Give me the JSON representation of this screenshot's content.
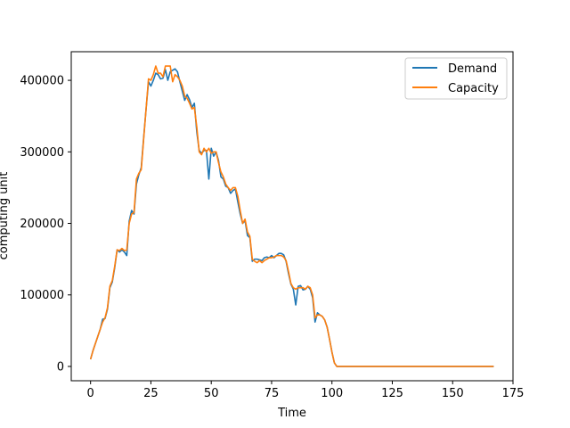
{
  "chart_data": {
    "type": "line",
    "title": "",
    "xlabel": "Time",
    "ylabel": "computing unit",
    "xlim": [
      -8,
      175
    ],
    "ylim": [
      -20000,
      440000
    ],
    "xticks": [
      0,
      25,
      50,
      75,
      100,
      125,
      150,
      175
    ],
    "xtick_labels": [
      "0",
      "25",
      "50",
      "75",
      "100",
      "125",
      "150",
      "175"
    ],
    "yticks": [
      0,
      100000,
      200000,
      300000,
      400000
    ],
    "ytick_labels": [
      "0",
      "100000",
      "200000",
      "300000",
      "400000"
    ],
    "grid": false,
    "legend_position": "top-right",
    "series": [
      {
        "name": "Demand",
        "color": "#1f77b4",
        "x": [
          0,
          1,
          2,
          3,
          4,
          5,
          6,
          7,
          8,
          9,
          10,
          11,
          12,
          13,
          14,
          15,
          16,
          17,
          18,
          19,
          20,
          21,
          22,
          23,
          24,
          25,
          26,
          27,
          28,
          29,
          30,
          31,
          32,
          33,
          34,
          35,
          36,
          37,
          38,
          39,
          40,
          41,
          42,
          43,
          44,
          45,
          46,
          47,
          48,
          49,
          50,
          51,
          52,
          53,
          54,
          55,
          56,
          57,
          58,
          59,
          60,
          61,
          62,
          63,
          64,
          65,
          66,
          67,
          68,
          69,
          70,
          71,
          72,
          73,
          74,
          75,
          76,
          77,
          78,
          79,
          80,
          81,
          82,
          83,
          84,
          85,
          86,
          87,
          88,
          89,
          90,
          91,
          92,
          93,
          94,
          95,
          96,
          97,
          98,
          99,
          100,
          101,
          102,
          103,
          104,
          105,
          106,
          107,
          108,
          110,
          120,
          130,
          140,
          150,
          160,
          167
        ],
        "y": [
          10000,
          22000,
          32000,
          42000,
          52000,
          66000,
          67000,
          80000,
          110000,
          118000,
          138000,
          163000,
          160000,
          163000,
          160000,
          155000,
          203000,
          218000,
          213000,
          255000,
          268000,
          278000,
          320000,
          360000,
          398000,
          392000,
          400000,
          410000,
          408000,
          402000,
          403000,
          415000,
          400000,
          412000,
          414000,
          416000,
          412000,
          398000,
          385000,
          372000,
          380000,
          373000,
          362000,
          368000,
          328000,
          302000,
          298000,
          302000,
          302000,
          262000,
          305000,
          294000,
          300000,
          288000,
          265000,
          262000,
          252000,
          250000,
          242000,
          246000,
          248000,
          230000,
          213000,
          200000,
          204000,
          183000,
          180000,
          147000,
          150000,
          150000,
          149000,
          148000,
          152000,
          153000,
          152000,
          155000,
          152000,
          155000,
          158000,
          158000,
          156000,
          147000,
          130000,
          115000,
          108000,
          86000,
          112000,
          113000,
          107000,
          108000,
          112000,
          108000,
          96000,
          62000,
          75000,
          72000,
          70000,
          65000,
          55000,
          38000,
          20000,
          5000,
          0,
          0,
          0,
          0,
          0,
          0,
          0,
          0,
          0,
          0,
          0,
          0,
          0,
          0
        ]
      },
      {
        "name": "Capacity",
        "color": "#ff7f0e",
        "x": [
          0,
          1,
          2,
          3,
          4,
          5,
          6,
          7,
          8,
          9,
          10,
          11,
          12,
          13,
          14,
          15,
          16,
          17,
          18,
          19,
          20,
          21,
          22,
          23,
          24,
          25,
          26,
          27,
          28,
          29,
          30,
          31,
          32,
          33,
          34,
          35,
          36,
          37,
          38,
          39,
          40,
          41,
          42,
          43,
          44,
          45,
          46,
          47,
          48,
          49,
          50,
          51,
          52,
          53,
          54,
          55,
          56,
          57,
          58,
          59,
          60,
          61,
          62,
          63,
          64,
          65,
          66,
          67,
          68,
          69,
          70,
          71,
          72,
          73,
          74,
          75,
          76,
          77,
          78,
          79,
          80,
          81,
          82,
          83,
          84,
          85,
          86,
          87,
          88,
          89,
          90,
          91,
          92,
          93,
          94,
          95,
          96,
          97,
          98,
          99,
          100,
          101,
          102,
          103,
          104,
          105,
          106,
          107,
          108,
          110,
          120,
          130,
          140,
          150,
          160,
          167
        ],
        "y": [
          10000,
          22000,
          32000,
          42000,
          52000,
          62000,
          68000,
          82000,
          112000,
          120000,
          140000,
          163000,
          162000,
          165000,
          162000,
          163000,
          200000,
          213000,
          215000,
          262000,
          270000,
          275000,
          318000,
          360000,
          402000,
          400000,
          408000,
          420000,
          410000,
          410000,
          405000,
          420000,
          420000,
          420000,
          398000,
          408000,
          405000,
          400000,
          392000,
          378000,
          375000,
          368000,
          360000,
          362000,
          335000,
          300000,
          296000,
          305000,
          300000,
          305000,
          298000,
          300000,
          300000,
          285000,
          272000,
          265000,
          255000,
          250000,
          246000,
          250000,
          250000,
          238000,
          218000,
          200000,
          206000,
          188000,
          182000,
          150000,
          147000,
          145000,
          148000,
          145000,
          148000,
          150000,
          152000,
          152000,
          153000,
          155000,
          155000,
          155000,
          153000,
          148000,
          133000,
          116000,
          110000,
          108000,
          110000,
          110000,
          110000,
          108000,
          112000,
          110000,
          100000,
          68000,
          72000,
          72000,
          70000,
          65000,
          55000,
          38000,
          20000,
          5000,
          0,
          0,
          0,
          0,
          0,
          0,
          0,
          0,
          0,
          0,
          0,
          0,
          0,
          0
        ]
      }
    ]
  }
}
